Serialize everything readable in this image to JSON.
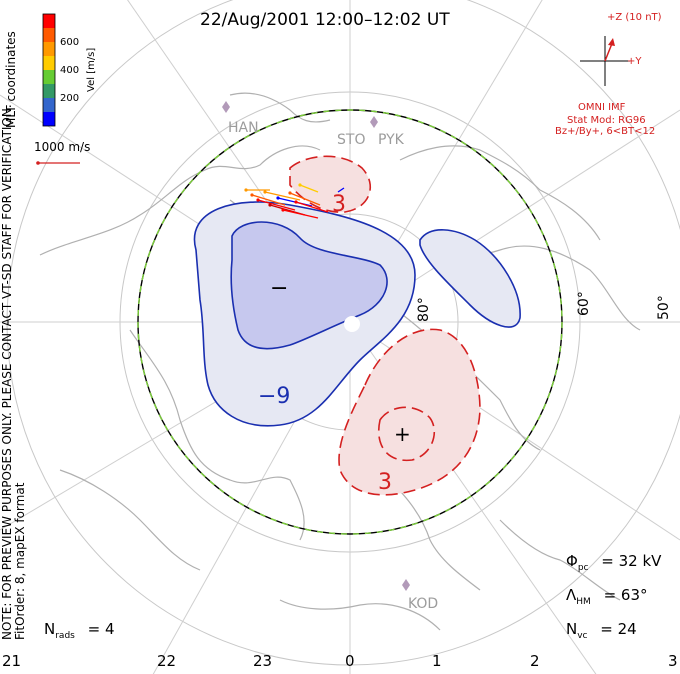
{
  "title": "22/Aug/2001 12:00–12:02 UT",
  "colorbar": {
    "ticks": [
      "600",
      "400",
      "200"
    ],
    "label": "Vel [m/s]",
    "colors": [
      "#ff0000",
      "#ff5a00",
      "#ff9900",
      "#ffcc00",
      "#66cc33",
      "#339966",
      "#3366cc",
      "#0000ff"
    ],
    "coordinates": "MLT coordinates"
  },
  "vector_scale": "1000 m/s",
  "note": {
    "line1": "NOTE: FOR PREVIEW PURPOSES ONLY. PLEASE CONTACT VT-SD STAFF FOR VERIFICATION.",
    "line2": "FitOrder: 8, mapEX format"
  },
  "imf": {
    "z_label": "+Z (10 nT)",
    "y_label": "+Y",
    "source": "OMNI IMF",
    "model": "Stat Mod: RG96",
    "condition": "Bz+/By+, 6<BT<12"
  },
  "sites": [
    "HAN",
    "STO",
    "PYK",
    "KOD"
  ],
  "latitude_labels": [
    "80°",
    "60°",
    "50°"
  ],
  "contours": {
    "negative_label": "−9",
    "positive_label_top": "3",
    "positive_label_bottom": "3",
    "minimum_marker": "−",
    "maximum_marker": "+"
  },
  "stats": {
    "phi_symbol": "Φ",
    "phi_sub": "pc",
    "phi_value": "= 32 kV",
    "lambda_symbol": "Λ",
    "lambda_sub": "HM",
    "lambda_value": "= 63°",
    "n_symbol": "N",
    "n_sub": "vc",
    "n_value": "= 24",
    "rads_symbol": "N",
    "rads_sub": "rads",
    "rads_value": "= 4"
  },
  "mlt_ticks": [
    "21",
    "22",
    "23",
    "0",
    "1",
    "2",
    "3"
  ],
  "colors": {
    "negative_fill": "#e6e8f3",
    "negative_inner": "#c6c8ee",
    "negative_line": "#1a2fb0",
    "positive_fill": "#f6e0e0",
    "positive_line": "#d42020",
    "coast": "#b0b0b0",
    "grid": "#c8c8c8",
    "boundary_green": "#7ccf3a"
  }
}
